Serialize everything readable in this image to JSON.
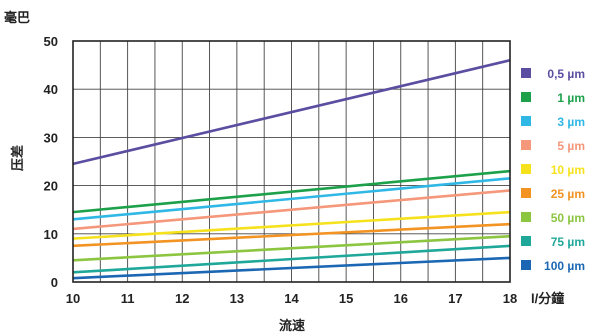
{
  "chart_data": {
    "type": "line",
    "ylabel_unit": "毫巴",
    "ylabel": "压差",
    "xlabel": "流速",
    "x_unit": "l/分鐘",
    "xlim": [
      10,
      18
    ],
    "ylim": [
      0,
      50
    ],
    "x_ticks": [
      "10",
      "11",
      "12",
      "13",
      "14",
      "15",
      "16",
      "17",
      "18"
    ],
    "y_ticks": [
      "0",
      "10",
      "20",
      "30",
      "40",
      "50"
    ],
    "grid": true,
    "legend_position": "right",
    "series": [
      {
        "name": "0,5 µm",
        "color": "#5b4ea1",
        "x": [
          10,
          18
        ],
        "y": [
          24.5,
          46
        ]
      },
      {
        "name": "1 µm",
        "color": "#1ca14a",
        "x": [
          10,
          18
        ],
        "y": [
          14.5,
          23
        ]
      },
      {
        "name": "3 µm",
        "color": "#2fb7e6",
        "x": [
          10,
          18
        ],
        "y": [
          13,
          21.5
        ]
      },
      {
        "name": "5 µm",
        "color": "#f4977a",
        "x": [
          10,
          18
        ],
        "y": [
          11,
          19
        ]
      },
      {
        "name": "10 µm",
        "color": "#f6e21c",
        "x": [
          10,
          18
        ],
        "y": [
          9,
          14.5
        ]
      },
      {
        "name": "25 µm",
        "color": "#f29322",
        "x": [
          10,
          18
        ],
        "y": [
          7.5,
          12
        ]
      },
      {
        "name": "50 µm",
        "color": "#8cc540",
        "x": [
          10,
          18
        ],
        "y": [
          4.5,
          9.5
        ]
      },
      {
        "name": "75 µm",
        "color": "#1fa89a",
        "x": [
          10,
          18
        ],
        "y": [
          2,
          7.5
        ]
      },
      {
        "name": "100 µm",
        "color": "#1b67b3",
        "x": [
          10,
          18
        ],
        "y": [
          0.8,
          5
        ]
      }
    ]
  }
}
